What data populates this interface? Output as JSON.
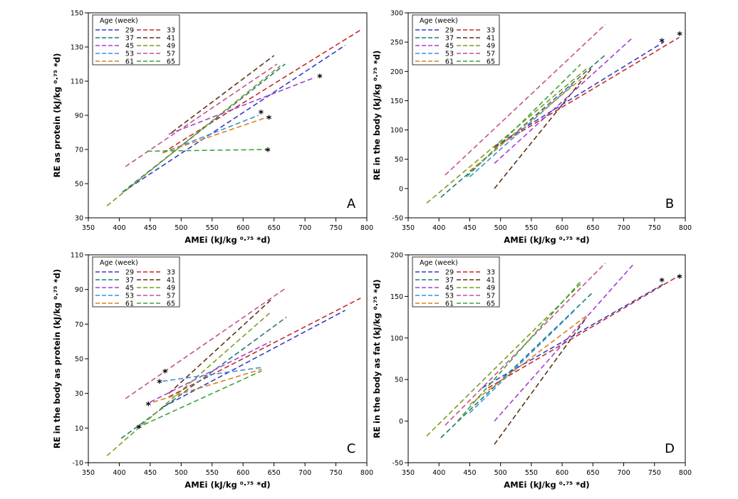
{
  "chart_data": [
    {
      "type": "line",
      "panel_label": "A",
      "xlabel": "AMEi (kJ/kg ⁰·⁷⁵ *d)",
      "ylabel": "RE as protein (kJ/kg ⁰·⁷⁵ *d)",
      "xlim": [
        350,
        800
      ],
      "ylim": [
        30,
        150
      ],
      "xticks": [
        350,
        400,
        450,
        500,
        550,
        600,
        650,
        700,
        750,
        800
      ],
      "yticks": [
        30,
        50,
        70,
        90,
        110,
        130,
        150
      ],
      "legend_title": "Age (week)",
      "series": [
        {
          "name": "29",
          "color": "#2e3fbf",
          "x": [
            405,
            765
          ],
          "y": [
            45,
            131
          ]
        },
        {
          "name": "33",
          "color": "#c42a2a",
          "x": [
            470,
            790
          ],
          "y": [
            68,
            140
          ]
        },
        {
          "name": "37",
          "color": "#1f7a78",
          "x": [
            405,
            668
          ],
          "y": [
            45,
            120
          ]
        },
        {
          "name": "41",
          "color": "#5e3210",
          "x": [
            485,
            650
          ],
          "y": [
            80,
            125
          ]
        },
        {
          "name": "45",
          "color": "#a33ed1",
          "x": [
            480,
            715
          ],
          "y": [
            79,
            112
          ]
        },
        {
          "name": "49",
          "color": "#7f9b1f",
          "x": [
            380,
            660
          ],
          "y": [
            37,
            119
          ]
        },
        {
          "name": "53",
          "color": "#3a8de0",
          "x": [
            470,
            625
          ],
          "y": [
            68,
            90
          ]
        },
        {
          "name": "57",
          "color": "#c2528f",
          "x": [
            410,
            655
          ],
          "y": [
            60,
            120
          ]
        },
        {
          "name": "61",
          "color": "#d9811b",
          "x": [
            470,
            640
          ],
          "y": [
            68,
            89
          ]
        },
        {
          "name": "65",
          "color": "#3aa33a",
          "x": [
            445,
            640
          ],
          "y": [
            69,
            70
          ]
        }
      ],
      "markers": [
        {
          "text": "*",
          "x": 724,
          "y": 112
        },
        {
          "text": "*",
          "x": 629,
          "y": 91
        },
        {
          "text": "*",
          "x": 642,
          "y": 88
        },
        {
          "text": "*",
          "x": 640,
          "y": 69
        }
      ]
    },
    {
      "type": "line",
      "panel_label": "B",
      "xlabel": "AMEi (kJ/kg ⁰·⁷⁵ *d)",
      "ylabel": "RE in the body (kJ/kg ⁰·⁷⁵ *d)",
      "xlim": [
        350,
        800
      ],
      "ylim": [
        -50,
        300
      ],
      "xticks": [
        350,
        400,
        450,
        500,
        550,
        600,
        650,
        700,
        750,
        800
      ],
      "yticks": [
        -50,
        0,
        50,
        100,
        150,
        200,
        250,
        300
      ],
      "legend_title": "Age (week)",
      "series": [
        {
          "name": "29",
          "color": "#2e3fbf",
          "x": [
            490,
            765
          ],
          "y": [
            72,
            250
          ]
        },
        {
          "name": "33",
          "color": "#c42a2a",
          "x": [
            490,
            790
          ],
          "y": [
            70,
            258
          ]
        },
        {
          "name": "37",
          "color": "#1f7a78",
          "x": [
            403,
            670
          ],
          "y": [
            -15,
            228
          ]
        },
        {
          "name": "41",
          "color": "#5e3210",
          "x": [
            490,
            650
          ],
          "y": [
            0,
            208
          ]
        },
        {
          "name": "45",
          "color": "#a33ed1",
          "x": [
            490,
            715
          ],
          "y": [
            43,
            258
          ]
        },
        {
          "name": "49",
          "color": "#7f9b1f",
          "x": [
            380,
            640
          ],
          "y": [
            -25,
            205
          ]
        },
        {
          "name": "53",
          "color": "#3a8de0",
          "x": [
            450,
            620
          ],
          "y": [
            20,
            180
          ]
        },
        {
          "name": "57",
          "color": "#c2528f",
          "x": [
            410,
            670
          ],
          "y": [
            23,
            280
          ]
        },
        {
          "name": "61",
          "color": "#d9811b",
          "x": [
            450,
            640
          ],
          "y": [
            30,
            195
          ]
        },
        {
          "name": "65",
          "color": "#3aa33a",
          "x": [
            445,
            630
          ],
          "y": [
            20,
            212
          ]
        }
      ],
      "markers": [
        {
          "text": "*",
          "x": 762,
          "y": 250
        },
        {
          "text": "*",
          "x": 791,
          "y": 262
        }
      ]
    },
    {
      "type": "line",
      "panel_label": "C",
      "xlabel": "AMEi (kJ/kg ⁰·⁷⁵ *d)",
      "ylabel": "RE in the body as protein (kJ/kg ⁰·⁷⁵ *d)",
      "xlim": [
        350,
        800
      ],
      "ylim": [
        -10,
        110
      ],
      "xticks": [
        350,
        400,
        450,
        500,
        550,
        600,
        650,
        700,
        750,
        800
      ],
      "yticks": [
        -10,
        10,
        30,
        50,
        70,
        90,
        110
      ],
      "legend_title": "Age (week)",
      "series": [
        {
          "name": "29",
          "color": "#2e3fbf",
          "x": [
            470,
            765
          ],
          "y": [
            22,
            78
          ]
        },
        {
          "name": "33",
          "color": "#c42a2a",
          "x": [
            480,
            790
          ],
          "y": [
            28,
            85
          ]
        },
        {
          "name": "37",
          "color": "#1f7a78",
          "x": [
            403,
            670
          ],
          "y": [
            4,
            74
          ]
        },
        {
          "name": "41",
          "color": "#5e3210",
          "x": [
            480,
            645
          ],
          "y": [
            30,
            84
          ]
        },
        {
          "name": "45",
          "color": "#a33ed1",
          "x": [
            450,
            645
          ],
          "y": [
            25,
            60
          ]
        },
        {
          "name": "49",
          "color": "#7f9b1f",
          "x": [
            380,
            645
          ],
          "y": [
            -6,
            77
          ]
        },
        {
          "name": "53",
          "color": "#3a8de0",
          "x": [
            470,
            630
          ],
          "y": [
            37,
            45
          ]
        },
        {
          "name": "57",
          "color": "#c2528f",
          "x": [
            410,
            670
          ],
          "y": [
            27,
            91
          ]
        },
        {
          "name": "61",
          "color": "#d9811b",
          "x": [
            455,
            630
          ],
          "y": [
            25,
            44
          ]
        },
        {
          "name": "65",
          "color": "#3aa33a",
          "x": [
            440,
            630
          ],
          "y": [
            12,
            43
          ]
        }
      ],
      "markers": [
        {
          "text": "*",
          "x": 474,
          "y": 42
        },
        {
          "text": "*",
          "x": 465,
          "y": 36
        },
        {
          "text": "*",
          "x": 447,
          "y": 23
        },
        {
          "text": "*",
          "x": 432,
          "y": 10
        }
      ]
    },
    {
      "type": "line",
      "panel_label": "D",
      "xlabel": "AMEi (kJ/kg ⁰·⁷⁵ *d)",
      "ylabel": "RE in the body as fat (kJ/kg ⁰·⁷⁵ *d)",
      "xlim": [
        350,
        800
      ],
      "ylim": [
        -50,
        200
      ],
      "xticks": [
        350,
        400,
        450,
        500,
        550,
        600,
        650,
        700,
        750,
        800
      ],
      "yticks": [
        -50,
        0,
        50,
        100,
        150,
        200
      ],
      "legend_title": "Age (week)",
      "series": [
        {
          "name": "29",
          "color": "#2e3fbf",
          "x": [
            470,
            765
          ],
          "y": [
            40,
            165
          ]
        },
        {
          "name": "33",
          "color": "#c42a2a",
          "x": [
            480,
            790
          ],
          "y": [
            40,
            175
          ]
        },
        {
          "name": "37",
          "color": "#1f7a78",
          "x": [
            403,
            650
          ],
          "y": [
            -20,
            155
          ]
        },
        {
          "name": "41",
          "color": "#5e3210",
          "x": [
            490,
            640
          ],
          "y": [
            -28,
            125
          ]
        },
        {
          "name": "45",
          "color": "#a33ed1",
          "x": [
            490,
            715
          ],
          "y": [
            0,
            188
          ]
        },
        {
          "name": "49",
          "color": "#7f9b1f",
          "x": [
            380,
            630
          ],
          "y": [
            -18,
            165
          ]
        },
        {
          "name": "53",
          "color": "#3a8de0",
          "x": [
            450,
            620
          ],
          "y": [
            10,
            133
          ]
        },
        {
          "name": "57",
          "color": "#c2528f",
          "x": [
            410,
            670
          ],
          "y": [
            -5,
            190
          ]
        },
        {
          "name": "61",
          "color": "#d9811b",
          "x": [
            450,
            640
          ],
          "y": [
            20,
            127
          ]
        },
        {
          "name": "65",
          "color": "#3aa33a",
          "x": [
            430,
            630
          ],
          "y": [
            0,
            168
          ]
        }
      ],
      "markers": [
        {
          "text": "*",
          "x": 762,
          "y": 168
        },
        {
          "text": "*",
          "x": 791,
          "y": 172
        }
      ]
    }
  ]
}
